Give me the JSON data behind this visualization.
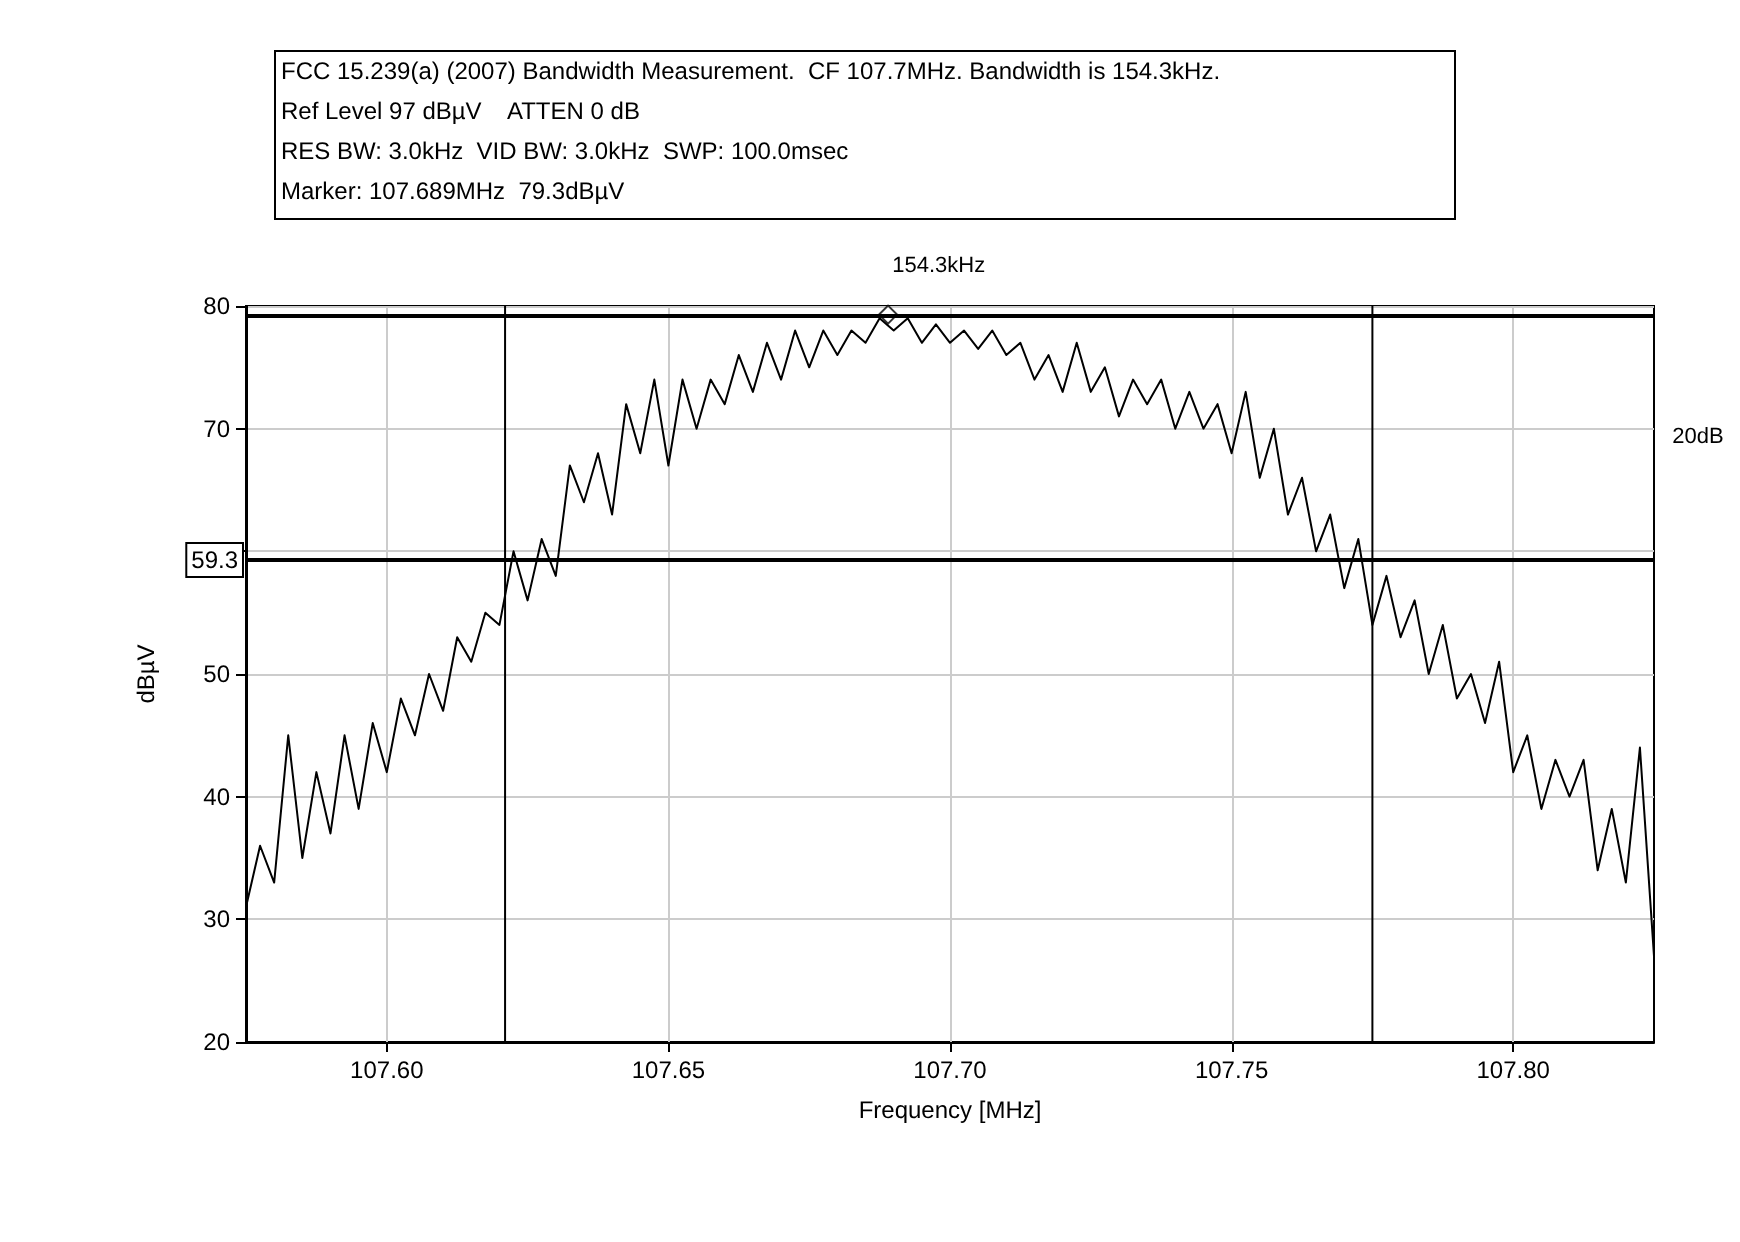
{
  "chart_data": {
    "type": "line",
    "title": "FCC 15.239(a) (2007) Bandwidth Measurement.  CF 107.7MHz. Bandwidth is 154.3kHz.",
    "xlabel": "Frequency [MHz]",
    "ylabel": "dBµV",
    "annotations": [
      "Ref Level 97 dBµV    ATTEN 0 dB",
      "RES BW: 3.0kHz  VID BW: 3.0kHz  SWP: 100.0msec",
      "Marker: 107.689MHz  79.3dBµV",
      {
        "text": "154.3kHz",
        "x": 107.698,
        "y": 80
      },
      "20dB"
    ],
    "x": [
      107.575,
      107.5775,
      107.58,
      107.5825,
      107.585,
      107.5875,
      107.59,
      107.5925,
      107.595,
      107.5975,
      107.6,
      107.6025,
      107.605,
      107.6075,
      107.61,
      107.6125,
      107.615,
      107.6175,
      107.62,
      107.6225,
      107.625,
      107.6275,
      107.63,
      107.6325,
      107.635,
      107.6375,
      107.64,
      107.6425,
      107.645,
      107.6475,
      107.65,
      107.6525,
      107.655,
      107.6575,
      107.66,
      107.6625,
      107.665,
      107.6675,
      107.67,
      107.6725,
      107.675,
      107.6775,
      107.68,
      107.6825,
      107.685,
      107.6875,
      107.69,
      107.6925,
      107.695,
      107.6975,
      107.7,
      107.7025,
      107.705,
      107.7075,
      107.71,
      107.7125,
      107.715,
      107.7175,
      107.72,
      107.7225,
      107.725,
      107.7275,
      107.73,
      107.7325,
      107.735,
      107.7375,
      107.74,
      107.7425,
      107.745,
      107.7475,
      107.75,
      107.7525,
      107.755,
      107.7575,
      107.76,
      107.7625,
      107.765,
      107.7675,
      107.77,
      107.7725,
      107.775,
      107.7775,
      107.78,
      107.7825,
      107.785,
      107.7875,
      107.79,
      107.7925,
      107.795,
      107.7975,
      107.8,
      107.8025,
      107.805,
      107.8075,
      107.81,
      107.8125,
      107.815,
      107.8175,
      107.82,
      107.8225,
      107.825
    ],
    "series": [
      {
        "color": "#000000",
        "values": [
          31,
          36,
          33,
          45,
          35,
          42,
          37,
          45,
          39,
          46,
          42,
          48,
          45,
          50,
          47,
          53,
          51,
          55,
          54,
          60,
          56,
          61,
          58,
          67,
          64,
          68,
          63,
          72,
          68,
          74,
          67,
          74,
          70,
          74,
          72,
          76,
          73,
          77,
          74,
          78,
          75,
          78,
          76,
          78,
          77,
          79,
          78,
          79,
          77,
          78.5,
          77,
          78,
          76.5,
          78,
          76,
          77,
          74,
          76,
          73,
          77,
          73,
          75,
          71,
          74,
          72,
          74,
          70,
          73,
          70,
          72,
          68,
          73,
          66,
          70,
          63,
          66,
          60,
          63,
          57,
          61,
          54,
          58,
          53,
          56,
          50,
          54,
          48,
          50,
          46,
          51,
          42,
          45,
          39,
          43,
          40,
          43,
          34,
          39,
          33,
          44,
          27
        ]
      },
      {
        "type": "scatter",
        "marker": "diamond",
        "color": "#000000",
        "x": [
          107.689
        ],
        "values": [
          79.3
        ]
      }
    ],
    "xlim": [
      107.575,
      107.825
    ],
    "xticks": [
      {
        "value": 107.6,
        "label": "107.60"
      },
      {
        "value": 107.65,
        "label": "107.65"
      },
      {
        "value": 107.7,
        "label": "107.70"
      },
      {
        "value": 107.75,
        "label": "107.75"
      },
      {
        "value": 107.8,
        "label": "107.80"
      }
    ],
    "ylim": [
      20,
      80
    ],
    "yticks": [
      20,
      30,
      40,
      50,
      {
        "value": 60,
        "label": null
      },
      70,
      80
    ],
    "ref_lines": [
      {
        "axis": "y",
        "value": 59.3,
        "label": "59.3",
        "color": "#000000"
      },
      {
        "axis": "y",
        "value": 79.3,
        "color": "#000000"
      },
      {
        "axis": "x",
        "value": 107.621,
        "color": "#000000"
      },
      {
        "axis": "x",
        "value": 107.775,
        "color": "#000000"
      }
    ],
    "grid": true,
    "marker": "none",
    "line_style": "solid"
  }
}
